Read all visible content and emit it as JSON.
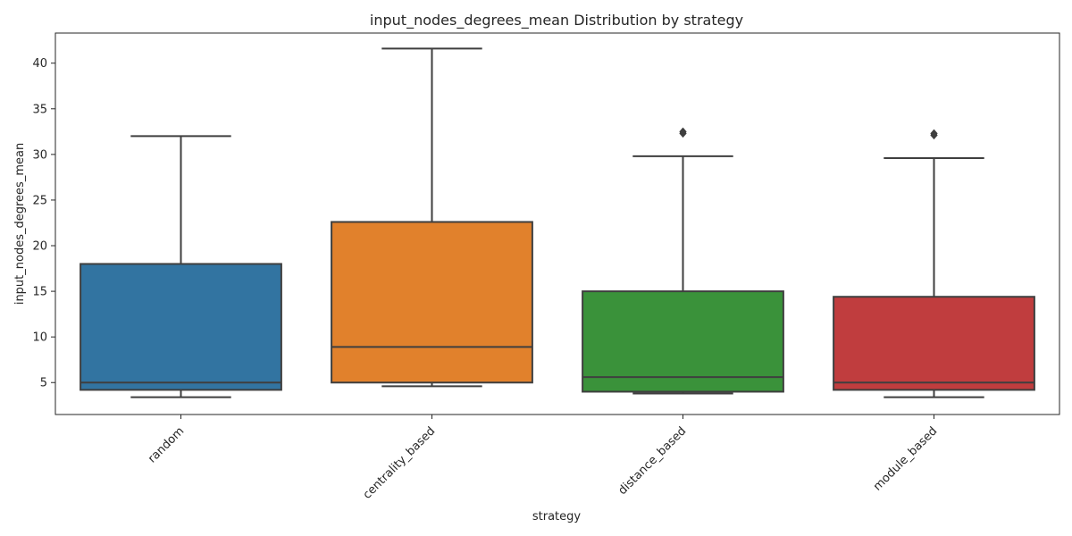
{
  "chart_data": {
    "type": "box",
    "title": "input_nodes_degrees_mean Distribution by strategy",
    "xlabel": "strategy",
    "ylabel": "input_nodes_degrees_mean",
    "ylim": [
      1.5,
      43.3
    ],
    "yticks": [
      5,
      10,
      15,
      20,
      25,
      30,
      35,
      40
    ],
    "grid": false,
    "categories": [
      "random",
      "centrality_based",
      "distance_based",
      "module_based"
    ],
    "colors": [
      "#3274a1",
      "#e1812c",
      "#3a923a",
      "#c03d3e"
    ],
    "boxes": [
      {
        "category": "random",
        "whisker_low": 3.4,
        "q1": 4.2,
        "median": 5.0,
        "q3": 18.0,
        "whisker_high": 32.0,
        "outliers": []
      },
      {
        "category": "centrality_based",
        "whisker_low": 4.6,
        "q1": 5.0,
        "median": 8.9,
        "q3": 22.6,
        "whisker_high": 41.6,
        "outliers": []
      },
      {
        "category": "distance_based",
        "whisker_low": 3.8,
        "q1": 4.0,
        "median": 5.6,
        "q3": 15.0,
        "whisker_high": 29.8,
        "outliers": [
          32.3,
          32.5
        ]
      },
      {
        "category": "module_based",
        "whisker_low": 3.4,
        "q1": 4.2,
        "median": 5.0,
        "q3": 14.4,
        "whisker_high": 29.6,
        "outliers": [
          32.1,
          32.3
        ]
      }
    ]
  }
}
